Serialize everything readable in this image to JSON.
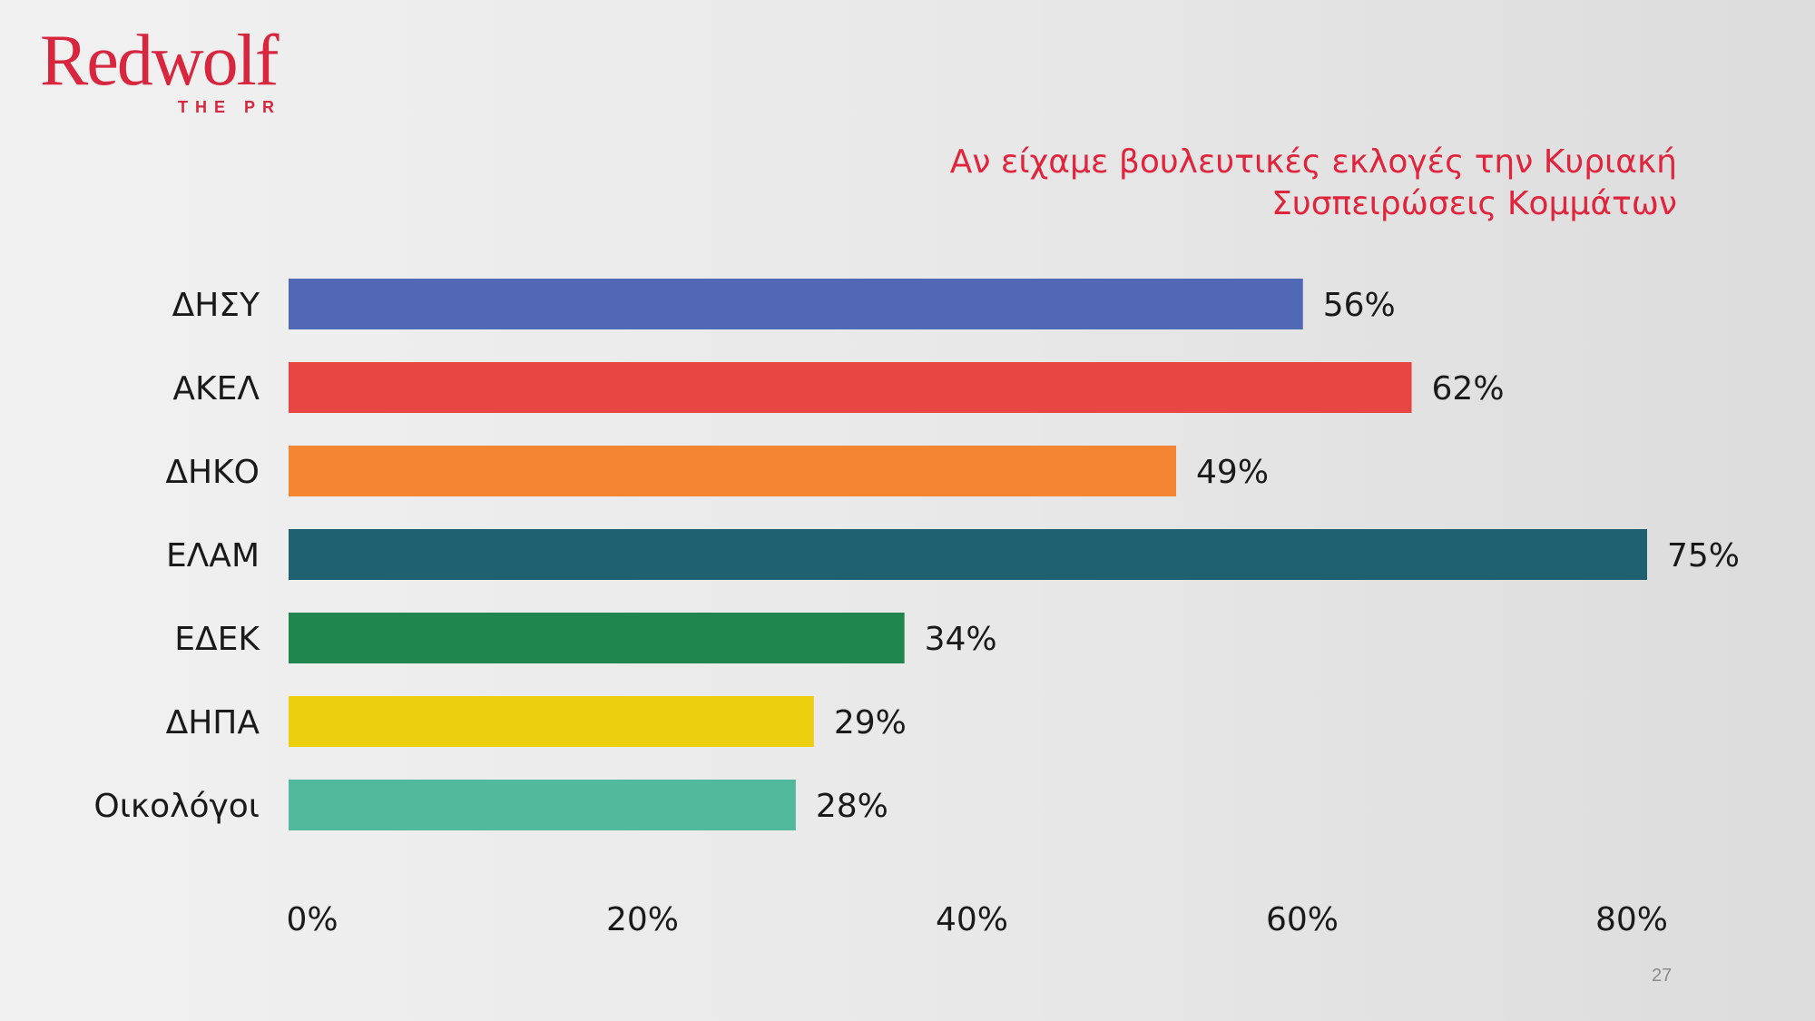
{
  "logo": {
    "name": "Redwolf",
    "tagline": "THE PR"
  },
  "page_number": "27",
  "colors": {
    "accent": "#e0243c"
  },
  "chart_data": {
    "type": "bar",
    "orientation": "horizontal",
    "title": "Αν είχαμε βουλευτικές εκλογές την Κυριακή",
    "subtitle": "Συσπειρώσεις Κομμάτων",
    "categories": [
      "ΔΗΣΥ",
      "ΑΚΕΛ",
      "ΔΗΚΟ",
      "ΕΛΑΜ",
      "ΕΔΕΚ",
      "ΔΗΠΑ",
      "Οικολόγοι"
    ],
    "values": [
      56,
      62,
      49,
      75,
      34,
      29,
      28
    ],
    "data_labels": [
      "56%",
      "62%",
      "49%",
      "75%",
      "34%",
      "29%",
      "28%"
    ],
    "colors": [
      "#5169b5",
      "#e84642",
      "#f48633",
      "#1f6171",
      "#1f874d",
      "#ecd010",
      "#52b99c"
    ],
    "xlim": [
      0,
      80
    ],
    "xticks": [
      0,
      20,
      40,
      60,
      80
    ],
    "xtick_labels": [
      "0%",
      "20%",
      "40%",
      "60%",
      "80%"
    ],
    "grid": false,
    "legend": "none"
  }
}
